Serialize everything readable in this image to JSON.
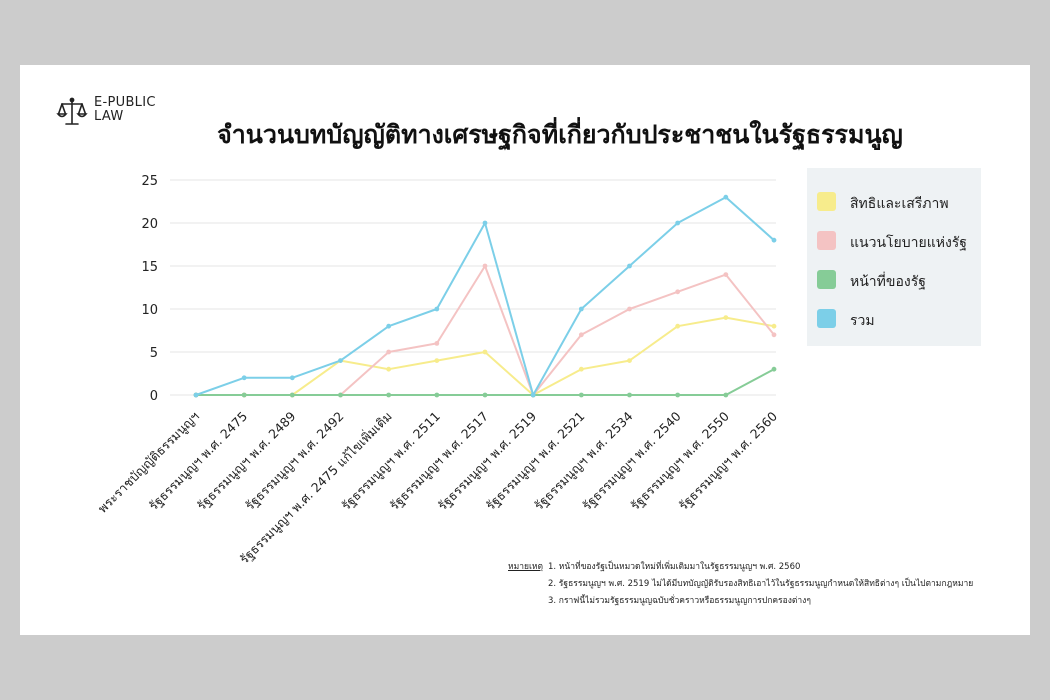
{
  "brand": {
    "line1": "E-PUBLIC",
    "line2": "LAW",
    "icon": "scales-of-justice-icon"
  },
  "title": "จำนวนบทบัญญัติทางเศรษฐกิจที่เกี่ยวกับประชาชนในรัฐธรรมนูญ",
  "chart_data": {
    "type": "line",
    "categories": [
      "พระราชบัญญัติธรรมนูญฯ",
      "รัฐธรรมนูญฯ พ.ศ. 2475",
      "รัฐธรรมนูญฯ พ.ศ. 2489",
      "รัฐธรรมนูญฯ พ.ศ. 2492",
      "รัฐธรรมนูญฯ พ.ศ. 2475 แก้ไขเพิ่มเติม",
      "รัฐธรรมนูญฯ พ.ศ. 2511",
      "รัฐธรรมนูญฯ พ.ศ. 2517",
      "รัฐธรรมนูญฯ พ.ศ. 2519",
      "รัฐธรรมนูญฯ พ.ศ. 2521",
      "รัฐธรรมนูญฯ พ.ศ. 2534",
      "รัฐธรรมนูญฯ พ.ศ. 2540",
      "รัฐธรรมนูญฯ พ.ศ. 2550",
      "รัฐธรรมนูญฯ พ.ศ. 2560"
    ],
    "series": [
      {
        "name": "สิทธิและเสรีภาพ",
        "color": "#f7ec8c",
        "values": [
          0,
          0,
          0,
          4,
          3,
          4,
          5,
          0,
          3,
          4,
          8,
          9,
          8
        ]
      },
      {
        "name": "แนวนโยบายแห่งรัฐ",
        "color": "#f4c3c3",
        "values": [
          0,
          0,
          0,
          0,
          5,
          6,
          15,
          0,
          7,
          10,
          12,
          14,
          7
        ]
      },
      {
        "name": "หน้าที่ของรัฐ",
        "color": "#86cc97",
        "values": [
          0,
          0,
          0,
          0,
          0,
          0,
          0,
          0,
          0,
          0,
          0,
          0,
          3
        ]
      },
      {
        "name": "รวม",
        "color": "#7ccfe8",
        "values": [
          0,
          2,
          2,
          4,
          8,
          10,
          20,
          0,
          10,
          15,
          20,
          23,
          18
        ]
      }
    ],
    "y_ticks": [
      "0",
      "5",
      "10",
      "15",
      "20",
      "25"
    ],
    "ylim": [
      0,
      25
    ],
    "grid": true,
    "legend_position": "right"
  },
  "notes": {
    "heading": "หมายเหตุ",
    "lines": [
      "1. หน้าที่ของรัฐเป็นหมวดใหม่ที่เพิ่มเติมมาในรัฐธรรมนูญฯ พ.ศ. 2560",
      "2. รัฐธรรมนูญฯ พ.ศ. 2519 ไม่ได้มีบทบัญญัติรับรองสิทธิเอาไว้ในรัฐธรรมนูญกำหนดให้สิทธิต่างๆ เป็นไปตามกฎหมาย",
      "3. กราฟนี้ไม่รวมรัฐธรรมนูญฉบับชั่วคราวหรือธรรมนูญการปกครองต่างๆ"
    ]
  }
}
